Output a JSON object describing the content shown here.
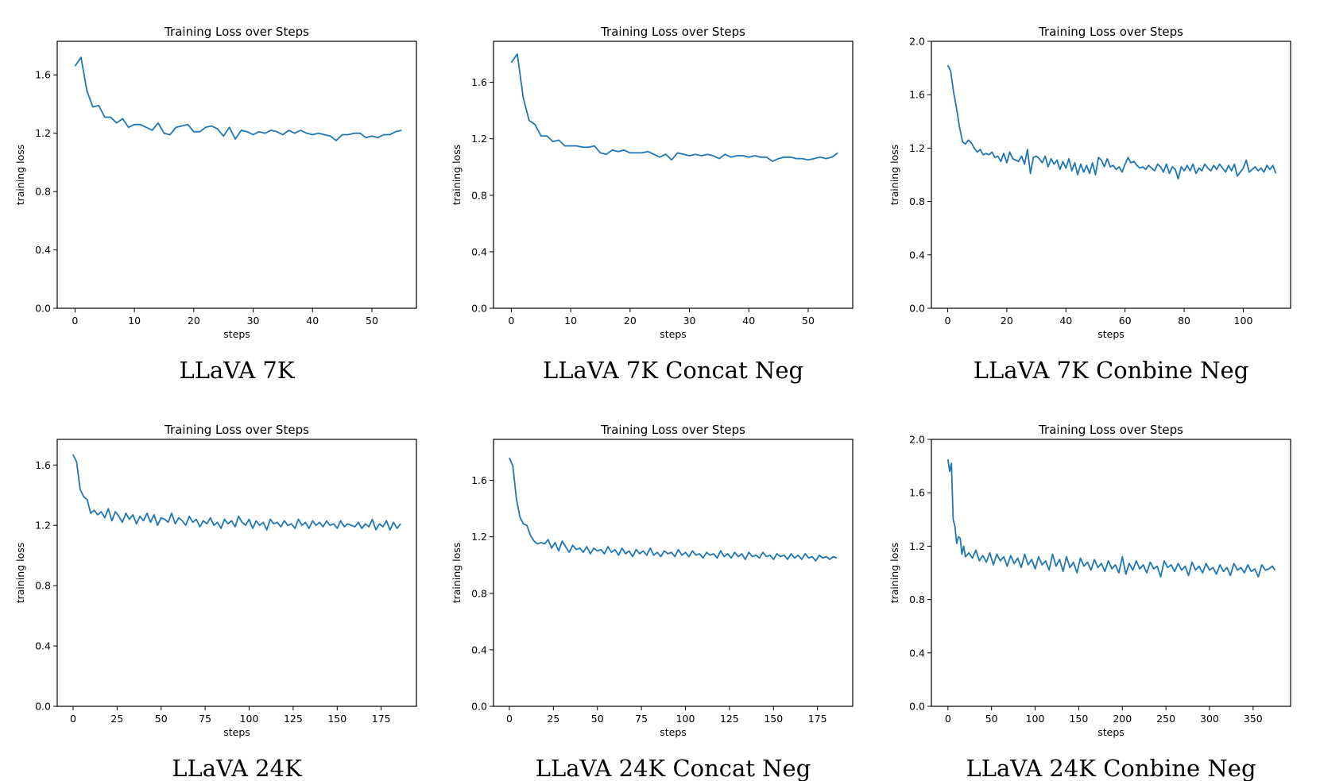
{
  "chart_data": [
    {
      "type": "line",
      "caption": "LLaVA 7K",
      "title": "Training Loss over Steps",
      "xlabel": "steps",
      "ylabel": "training loss",
      "xlim": [
        -3,
        57.5
      ],
      "ylim": [
        0.0,
        1.83
      ],
      "xticks": [
        0,
        10,
        20,
        30,
        40,
        50
      ],
      "yticks": [
        0.0,
        0.4,
        0.8,
        1.2,
        1.6
      ],
      "ytick_format": 1,
      "x": [
        0,
        1,
        2,
        3,
        4,
        5,
        6,
        7,
        8,
        9,
        10,
        11,
        12,
        13,
        14,
        15,
        16,
        17,
        18,
        19,
        20,
        21,
        22,
        23,
        24,
        25,
        26,
        27,
        28,
        29,
        30,
        31,
        32,
        33,
        34,
        35,
        36,
        37,
        38,
        39,
        40,
        41,
        42,
        43,
        44,
        45,
        46,
        47,
        48,
        49,
        50,
        51,
        52,
        53,
        54,
        55
      ],
      "y": [
        1.66,
        1.72,
        1.49,
        1.38,
        1.39,
        1.31,
        1.31,
        1.27,
        1.3,
        1.24,
        1.26,
        1.26,
        1.24,
        1.22,
        1.27,
        1.2,
        1.19,
        1.24,
        1.25,
        1.26,
        1.21,
        1.21,
        1.24,
        1.25,
        1.23,
        1.18,
        1.24,
        1.16,
        1.22,
        1.21,
        1.19,
        1.21,
        1.2,
        1.22,
        1.21,
        1.19,
        1.22,
        1.2,
        1.22,
        1.2,
        1.19,
        1.2,
        1.19,
        1.18,
        1.15,
        1.19,
        1.19,
        1.2,
        1.2,
        1.17,
        1.18,
        1.17,
        1.19,
        1.19,
        1.21,
        1.22
      ]
    },
    {
      "type": "line",
      "caption": "LLaVA 7K Concat Neg",
      "title": "Training Loss over Steps",
      "xlabel": "steps",
      "ylabel": "training loss",
      "xlim": [
        -3,
        57.5
      ],
      "ylim": [
        0.0,
        1.89
      ],
      "xticks": [
        0,
        10,
        20,
        30,
        40,
        50
      ],
      "yticks": [
        0.0,
        0.4,
        0.8,
        1.2,
        1.6
      ],
      "ytick_format": 1,
      "x": [
        0,
        1,
        2,
        3,
        4,
        5,
        6,
        7,
        8,
        9,
        10,
        11,
        12,
        13,
        14,
        15,
        16,
        17,
        18,
        19,
        20,
        21,
        22,
        23,
        24,
        25,
        26,
        27,
        28,
        29,
        30,
        31,
        32,
        33,
        34,
        35,
        36,
        37,
        38,
        39,
        40,
        41,
        42,
        43,
        44,
        45,
        46,
        47,
        48,
        49,
        50,
        51,
        52,
        53,
        54,
        55
      ],
      "y": [
        1.74,
        1.8,
        1.49,
        1.33,
        1.3,
        1.22,
        1.22,
        1.18,
        1.19,
        1.15,
        1.15,
        1.15,
        1.14,
        1.14,
        1.15,
        1.1,
        1.09,
        1.12,
        1.11,
        1.12,
        1.1,
        1.1,
        1.1,
        1.11,
        1.09,
        1.07,
        1.09,
        1.05,
        1.1,
        1.09,
        1.08,
        1.09,
        1.08,
        1.09,
        1.08,
        1.06,
        1.09,
        1.07,
        1.08,
        1.08,
        1.07,
        1.08,
        1.07,
        1.07,
        1.04,
        1.06,
        1.07,
        1.07,
        1.06,
        1.06,
        1.05,
        1.06,
        1.07,
        1.06,
        1.07,
        1.1
      ]
    },
    {
      "type": "line",
      "caption": "LLaVA 7K Conbine Neg",
      "title": "Training Loss over Steps",
      "xlabel": "steps",
      "ylabel": "training loss",
      "xlim": [
        -5.5,
        116
      ],
      "ylim": [
        0.0,
        2.0
      ],
      "xticks": [
        0,
        20,
        40,
        60,
        80,
        100
      ],
      "yticks": [
        0.0,
        0.4,
        0.8,
        1.2,
        1.6,
        2.0
      ],
      "ytick_format": 1,
      "x": [
        0,
        1,
        2,
        3,
        4,
        5,
        6,
        7,
        8,
        9,
        10,
        11,
        12,
        13,
        14,
        15,
        16,
        17,
        18,
        19,
        20,
        21,
        22,
        23,
        24,
        25,
        26,
        27,
        28,
        29,
        30,
        31,
        32,
        33,
        34,
        35,
        36,
        37,
        38,
        39,
        40,
        41,
        42,
        43,
        44,
        45,
        46,
        47,
        48,
        49,
        50,
        51,
        52,
        53,
        54,
        55,
        56,
        57,
        58,
        59,
        60,
        61,
        62,
        63,
        64,
        65,
        66,
        67,
        68,
        69,
        70,
        71,
        72,
        73,
        74,
        75,
        76,
        77,
        78,
        79,
        80,
        81,
        82,
        83,
        84,
        85,
        86,
        87,
        88,
        89,
        90,
        91,
        92,
        93,
        94,
        95,
        96,
        97,
        98,
        99,
        100,
        101,
        102,
        103,
        104,
        105,
        106,
        107,
        108,
        109,
        110,
        111
      ],
      "y": [
        1.82,
        1.78,
        1.62,
        1.5,
        1.36,
        1.25,
        1.23,
        1.26,
        1.24,
        1.2,
        1.17,
        1.19,
        1.15,
        1.16,
        1.15,
        1.17,
        1.13,
        1.14,
        1.1,
        1.16,
        1.09,
        1.17,
        1.12,
        1.11,
        1.1,
        1.14,
        1.08,
        1.19,
        1.01,
        1.13,
        1.14,
        1.12,
        1.09,
        1.14,
        1.06,
        1.12,
        1.08,
        1.11,
        1.04,
        1.1,
        1.05,
        1.12,
        1.03,
        1.09,
        1.0,
        1.08,
        1.02,
        1.07,
        1.01,
        1.09,
        1.0,
        1.13,
        1.11,
        1.06,
        1.12,
        1.06,
        1.07,
        1.04,
        1.06,
        1.02,
        1.08,
        1.13,
        1.09,
        1.1,
        1.07,
        1.05,
        1.06,
        1.04,
        1.07,
        1.05,
        1.03,
        1.08,
        1.06,
        1.02,
        1.08,
        1.01,
        1.06,
        1.04,
        0.97,
        1.06,
        1.03,
        1.07,
        1.03,
        1.08,
        1.01,
        1.05,
        1.03,
        1.08,
        1.05,
        1.03,
        1.07,
        1.04,
        1.08,
        1.05,
        1.02,
        1.07,
        1.03,
        1.08,
        0.99,
        1.02,
        1.05,
        1.11,
        1.02,
        1.04,
        1.06,
        1.03,
        1.05,
        1.02,
        1.07,
        1.04,
        1.07,
        1.01
      ]
    },
    {
      "type": "line",
      "caption": "LLaVA 24K",
      "title": "Training Loss over Steps",
      "xlabel": "steps",
      "ylabel": "training loss",
      "xlim": [
        -9,
        195
      ],
      "ylim": [
        0.0,
        1.77
      ],
      "xticks": [
        0,
        25,
        50,
        75,
        100,
        125,
        150,
        175
      ],
      "yticks": [
        0.0,
        0.4,
        0.8,
        1.2,
        1.6
      ],
      "ytick_format": 1,
      "x": [
        0,
        2,
        4,
        6,
        8,
        10,
        12,
        14,
        16,
        18,
        20,
        22,
        24,
        26,
        28,
        30,
        32,
        34,
        36,
        38,
        40,
        42,
        44,
        46,
        48,
        50,
        52,
        54,
        56,
        58,
        60,
        62,
        64,
        66,
        68,
        70,
        72,
        74,
        76,
        78,
        80,
        82,
        84,
        86,
        88,
        90,
        92,
        94,
        96,
        98,
        100,
        102,
        104,
        106,
        108,
        110,
        112,
        114,
        116,
        118,
        120,
        122,
        124,
        126,
        128,
        130,
        132,
        134,
        136,
        138,
        140,
        142,
        144,
        146,
        148,
        150,
        152,
        154,
        156,
        158,
        160,
        162,
        164,
        166,
        168,
        170,
        172,
        174,
        176,
        178,
        180,
        182,
        184,
        186
      ],
      "y": [
        1.67,
        1.62,
        1.44,
        1.39,
        1.37,
        1.28,
        1.3,
        1.27,
        1.29,
        1.25,
        1.31,
        1.23,
        1.29,
        1.26,
        1.22,
        1.28,
        1.24,
        1.27,
        1.21,
        1.26,
        1.23,
        1.28,
        1.22,
        1.27,
        1.2,
        1.25,
        1.24,
        1.22,
        1.28,
        1.21,
        1.25,
        1.23,
        1.2,
        1.26,
        1.22,
        1.24,
        1.19,
        1.23,
        1.21,
        1.25,
        1.2,
        1.22,
        1.18,
        1.24,
        1.21,
        1.23,
        1.19,
        1.26,
        1.22,
        1.2,
        1.24,
        1.18,
        1.23,
        1.2,
        1.22,
        1.17,
        1.24,
        1.21,
        1.22,
        1.19,
        1.23,
        1.2,
        1.21,
        1.18,
        1.24,
        1.2,
        1.22,
        1.18,
        1.23,
        1.2,
        1.22,
        1.19,
        1.23,
        1.2,
        1.21,
        1.18,
        1.23,
        1.19,
        1.21,
        1.2,
        1.19,
        1.22,
        1.18,
        1.21,
        1.19,
        1.24,
        1.17,
        1.21,
        1.19,
        1.23,
        1.17,
        1.22,
        1.18,
        1.21
      ]
    },
    {
      "type": "line",
      "caption": "LLaVA 24K Concat Neg",
      "title": "Training Loss over Steps",
      "xlabel": "steps",
      "ylabel": "training loss",
      "xlim": [
        -9,
        195
      ],
      "ylim": [
        0.0,
        1.89
      ],
      "xticks": [
        0,
        25,
        50,
        75,
        100,
        125,
        150,
        175
      ],
      "yticks": [
        0.0,
        0.4,
        0.8,
        1.2,
        1.6
      ],
      "ytick_format": 1,
      "x": [
        0,
        2,
        4,
        6,
        8,
        10,
        12,
        14,
        16,
        18,
        20,
        22,
        24,
        26,
        28,
        30,
        32,
        34,
        36,
        38,
        40,
        42,
        44,
        46,
        48,
        50,
        52,
        54,
        56,
        58,
        60,
        62,
        64,
        66,
        68,
        70,
        72,
        74,
        76,
        78,
        80,
        82,
        84,
        86,
        88,
        90,
        92,
        94,
        96,
        98,
        100,
        102,
        104,
        106,
        108,
        110,
        112,
        114,
        116,
        118,
        120,
        122,
        124,
        126,
        128,
        130,
        132,
        134,
        136,
        138,
        140,
        142,
        144,
        146,
        148,
        150,
        152,
        154,
        156,
        158,
        160,
        162,
        164,
        166,
        168,
        170,
        172,
        174,
        176,
        178,
        180,
        182,
        184,
        186
      ],
      "y": [
        1.76,
        1.7,
        1.47,
        1.34,
        1.29,
        1.28,
        1.21,
        1.17,
        1.15,
        1.16,
        1.15,
        1.18,
        1.12,
        1.16,
        1.1,
        1.17,
        1.13,
        1.09,
        1.14,
        1.11,
        1.12,
        1.09,
        1.13,
        1.08,
        1.12,
        1.1,
        1.11,
        1.08,
        1.13,
        1.09,
        1.11,
        1.07,
        1.12,
        1.08,
        1.1,
        1.06,
        1.11,
        1.08,
        1.1,
        1.07,
        1.12,
        1.07,
        1.09,
        1.06,
        1.1,
        1.08,
        1.09,
        1.06,
        1.11,
        1.07,
        1.09,
        1.06,
        1.1,
        1.07,
        1.08,
        1.05,
        1.09,
        1.07,
        1.08,
        1.05,
        1.1,
        1.06,
        1.08,
        1.05,
        1.09,
        1.06,
        1.08,
        1.04,
        1.09,
        1.06,
        1.07,
        1.05,
        1.09,
        1.06,
        1.07,
        1.04,
        1.08,
        1.06,
        1.07,
        1.04,
        1.08,
        1.05,
        1.07,
        1.04,
        1.08,
        1.05,
        1.06,
        1.03,
        1.07,
        1.05,
        1.06,
        1.04,
        1.06,
        1.05
      ]
    },
    {
      "type": "line",
      "caption": "LLaVA 24K Conbine Neg",
      "title": "Training Loss over Steps",
      "xlabel": "steps",
      "ylabel": "training loss",
      "xlim": [
        -19,
        393
      ],
      "ylim": [
        0.0,
        2.0
      ],
      "xticks": [
        0,
        50,
        100,
        150,
        200,
        250,
        300,
        350
      ],
      "yticks": [
        0.0,
        0.4,
        0.8,
        1.2,
        1.6,
        2.0
      ],
      "ytick_format": 1,
      "x": [
        0,
        2,
        4,
        6,
        8,
        10,
        12,
        14,
        16,
        18,
        20,
        24,
        28,
        32,
        36,
        40,
        44,
        48,
        52,
        56,
        60,
        64,
        68,
        72,
        76,
        80,
        84,
        88,
        92,
        96,
        100,
        104,
        108,
        112,
        116,
        120,
        124,
        128,
        132,
        136,
        140,
        144,
        148,
        152,
        156,
        160,
        164,
        168,
        172,
        176,
        180,
        184,
        188,
        192,
        196,
        200,
        204,
        208,
        212,
        216,
        220,
        224,
        228,
        232,
        236,
        240,
        244,
        248,
        252,
        256,
        260,
        264,
        268,
        272,
        276,
        280,
        284,
        288,
        292,
        296,
        300,
        304,
        308,
        312,
        316,
        320,
        324,
        328,
        332,
        336,
        340,
        344,
        348,
        352,
        356,
        360,
        364,
        368,
        372,
        375
      ],
      "y": [
        1.85,
        1.76,
        1.82,
        1.4,
        1.35,
        1.22,
        1.27,
        1.26,
        1.14,
        1.2,
        1.12,
        1.15,
        1.11,
        1.17,
        1.09,
        1.13,
        1.08,
        1.15,
        1.06,
        1.14,
        1.09,
        1.12,
        1.05,
        1.13,
        1.07,
        1.11,
        1.04,
        1.14,
        1.06,
        1.1,
        1.03,
        1.12,
        1.06,
        1.09,
        1.02,
        1.14,
        1.05,
        1.1,
        1.01,
        1.12,
        1.04,
        1.08,
        1.0,
        1.11,
        1.05,
        1.08,
        1.02,
        1.1,
        1.04,
        1.07,
        1.01,
        1.09,
        1.03,
        1.06,
        1.0,
        1.12,
        0.99,
        1.07,
        1.02,
        1.09,
        1.03,
        1.06,
        1.0,
        1.08,
        1.03,
        1.05,
        0.97,
        1.09,
        1.04,
        1.06,
        1.01,
        1.07,
        1.02,
        1.05,
        0.98,
        1.08,
        1.02,
        1.05,
        1.0,
        1.07,
        1.02,
        1.04,
        0.99,
        1.06,
        1.01,
        1.04,
        0.98,
        1.07,
        1.02,
        1.04,
        1.0,
        1.06,
        1.01,
        1.03,
        0.97,
        1.06,
        1.02,
        1.03,
        1.05,
        1.02
      ]
    }
  ]
}
